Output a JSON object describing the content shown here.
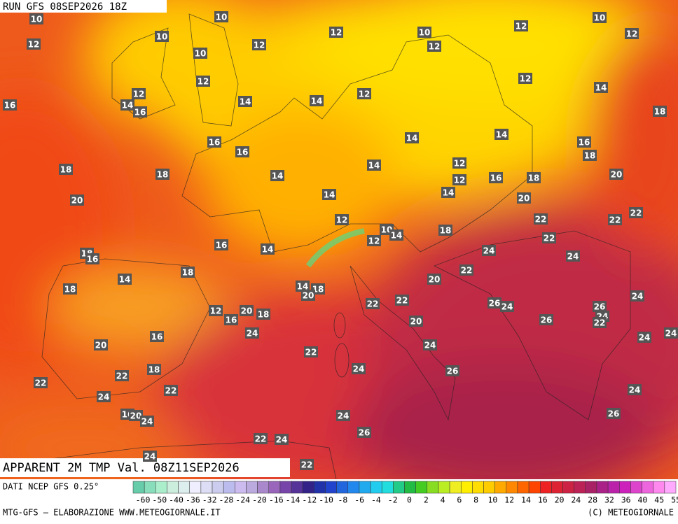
{
  "header": {
    "run_title": "RUN GFS 08SEP2026 18Z"
  },
  "footer": {
    "product_title": "APPARENT 2M TMP Val. 08Z11SEP2026",
    "source": "DATI NCEP GFS 0.25°",
    "credit_left": "MTG-GFS — ELABORAZIONE WWW.METEOGIORNALE.IT",
    "credit_right": "(C) METEOGIORNALE"
  },
  "scale": {
    "ticks": [
      -60,
      -50,
      -40,
      -36,
      -32,
      -28,
      -24,
      -20,
      -16,
      -14,
      -12,
      -10,
      -8,
      -6,
      -4,
      -2,
      0,
      2,
      4,
      6,
      8,
      10,
      12,
      14,
      16,
      20,
      24,
      28,
      32,
      36,
      40,
      45,
      55
    ],
    "colors": [
      "#66ccaa",
      "#88ddbb",
      "#aaeecc",
      "#cceedd",
      "#ddeeee",
      "#eeeeff",
      "#ddddf5",
      "#ccccee",
      "#bbbbee",
      "#ccbbee",
      "#bbaadd",
      "#aa88cc",
      "#9966bb",
      "#7744aa",
      "#553399",
      "#332288",
      "#2233aa",
      "#2244cc",
      "#2266dd",
      "#2288ee",
      "#22aaee",
      "#22ccee",
      "#22dddd",
      "#22cc88",
      "#22bb44",
      "#44cc22",
      "#88dd22",
      "#bbee22",
      "#eeee22",
      "#ffee00",
      "#ffdd00",
      "#ffcc00",
      "#ffaa00",
      "#ff8800",
      "#ff6600",
      "#ff4400",
      "#ee2222",
      "#dd2233",
      "#cc2244",
      "#bb2255",
      "#aa2266",
      "#aa2288",
      "#bb22aa",
      "#cc22bb",
      "#dd44cc",
      "#ee66dd",
      "#ff88ee",
      "#ffaaff"
    ]
  },
  "map": {
    "labels": [
      10,
      10,
      10,
      10,
      12,
      12,
      10,
      12,
      12,
      12,
      12,
      10,
      12,
      12,
      12,
      12,
      14,
      16,
      14,
      16,
      14,
      14,
      18,
      14,
      14,
      16,
      16,
      16,
      18,
      18,
      18,
      14,
      14,
      12,
      12,
      16,
      18,
      20,
      20,
      14,
      14,
      20,
      22,
      12,
      22,
      22,
      10,
      14,
      12,
      18,
      22,
      16,
      14,
      24,
      24,
      18,
      16,
      18,
      22,
      14,
      18,
      20,
      14,
      18,
      20,
      22,
      22,
      26,
      24,
      26,
      24,
      12,
      20,
      18,
      16,
      24,
      22,
      20,
      26,
      24,
      16,
      24,
      24,
      20,
      24,
      22,
      24,
      26,
      18,
      22,
      22,
      22,
      24,
      24,
      16,
      20,
      24,
      24,
      26,
      26,
      22,
      24,
      24,
      22
    ]
  }
}
